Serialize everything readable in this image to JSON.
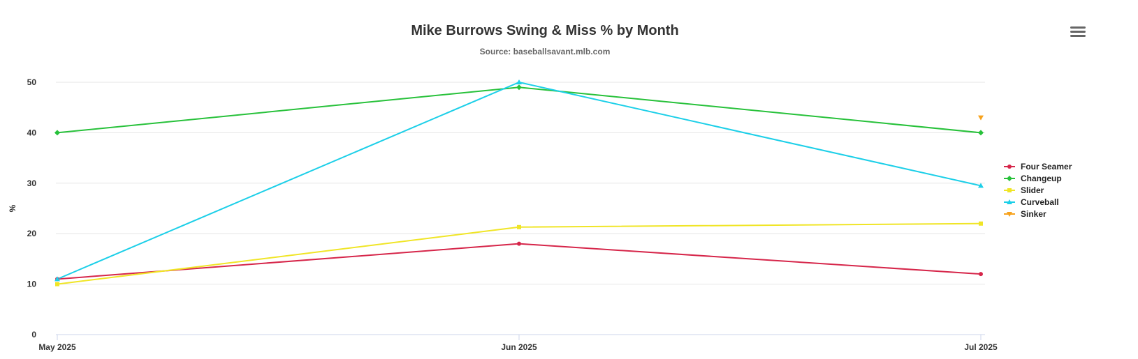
{
  "chart_data": {
    "type": "line",
    "title": "Mike Burrows Swing & Miss % by Month",
    "subtitle": "Source: baseballsavant.mlb.com",
    "xlabel": "",
    "ylabel": "%",
    "categories": [
      "May 2025",
      "Jun 2025",
      "Jul 2025"
    ],
    "yticks": [
      0,
      10,
      20,
      30,
      40,
      50
    ],
    "ylim": [
      0,
      50
    ],
    "grid": true,
    "legend_position": "right",
    "series": [
      {
        "name": "Four Seamer",
        "color": "#d6264a",
        "marker": "circle",
        "values": [
          11,
          18,
          12
        ]
      },
      {
        "name": "Changeup",
        "color": "#27c13a",
        "marker": "diamond",
        "values": [
          40,
          49,
          40
        ]
      },
      {
        "name": "Slider",
        "color": "#f0e526",
        "marker": "square",
        "values": [
          10,
          21.3,
          22
        ]
      },
      {
        "name": "Curveball",
        "color": "#1ccfe8",
        "marker": "triangle",
        "values": [
          11,
          50,
          29.5
        ]
      },
      {
        "name": "Sinker",
        "color": "#f7a21c",
        "marker": "triangle-down",
        "values": [
          null,
          null,
          43
        ]
      }
    ]
  },
  "menu": {
    "icon": "hamburger-menu-icon"
  }
}
